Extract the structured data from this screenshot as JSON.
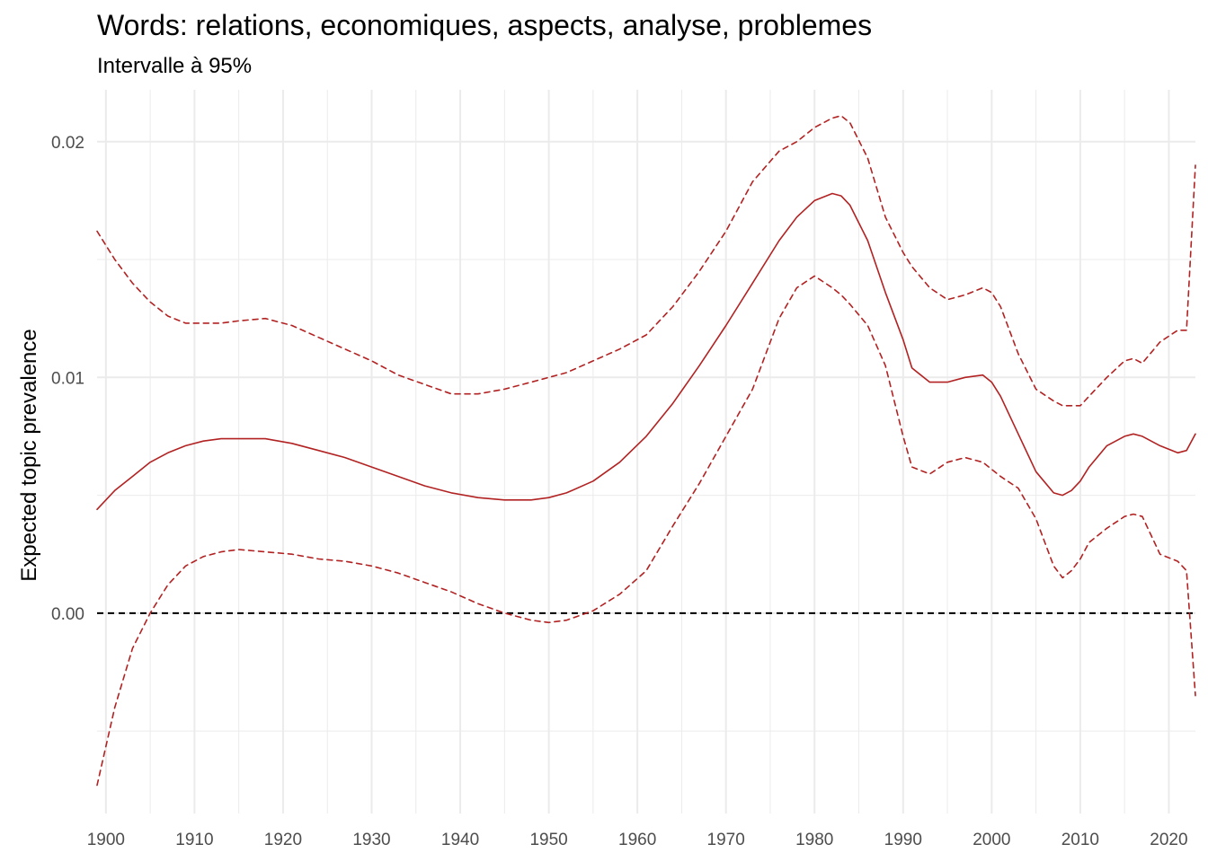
{
  "chart_data": {
    "type": "line",
    "title": "Words: relations, economiques, aspects, analyse, problemes",
    "subtitle": "Intervalle à 95%",
    "xlabel": "",
    "ylabel": "Expected topic prevalence",
    "xlim": [
      1899,
      2023
    ],
    "ylim": [
      -0.0085,
      0.0222
    ],
    "x_ticks": [
      1900,
      1910,
      1920,
      1930,
      1940,
      1950,
      1960,
      1970,
      1980,
      1990,
      2000,
      2010,
      2020
    ],
    "y_ticks": [
      0.0,
      0.01,
      0.02
    ],
    "y_tick_labels": [
      "0.00",
      "0.01",
      "0.02"
    ],
    "y_minor_ticks": [
      -0.005,
      0.005,
      0.015
    ],
    "grid": true,
    "reference_line": {
      "y": 0,
      "style": "dashed",
      "color": "#000000"
    },
    "colors": {
      "series": "#b22222",
      "grid": "#ebebeb",
      "axis_text": "#4d4d4d"
    },
    "series": [
      {
        "name": "estimate",
        "style": "solid",
        "x": [
          1899,
          1901,
          1903,
          1905,
          1907,
          1909,
          1911,
          1913,
          1915,
          1918,
          1921,
          1924,
          1927,
          1930,
          1933,
          1936,
          1939,
          1942,
          1945,
          1948,
          1950,
          1952,
          1955,
          1958,
          1961,
          1964,
          1967,
          1970,
          1973,
          1976,
          1978,
          1980,
          1982,
          1983,
          1984,
          1986,
          1988,
          1990,
          1991,
          1993,
          1995,
          1997,
          1999,
          2000,
          2001,
          2003,
          2005,
          2007,
          2008,
          2009,
          2010,
          2011,
          2013,
          2015,
          2016,
          2017,
          2019,
          2021,
          2022,
          2023
        ],
        "values": [
          0.0044,
          0.0052,
          0.0058,
          0.0064,
          0.0068,
          0.0071,
          0.0073,
          0.0074,
          0.0074,
          0.0074,
          0.0072,
          0.0069,
          0.0066,
          0.0062,
          0.0058,
          0.0054,
          0.0051,
          0.0049,
          0.0048,
          0.0048,
          0.0049,
          0.0051,
          0.0056,
          0.0064,
          0.0075,
          0.0089,
          0.0105,
          0.0122,
          0.014,
          0.0158,
          0.0168,
          0.0175,
          0.0178,
          0.0177,
          0.0173,
          0.0158,
          0.0136,
          0.0116,
          0.0104,
          0.0098,
          0.0098,
          0.01,
          0.0101,
          0.0098,
          0.0092,
          0.0076,
          0.006,
          0.0051,
          0.005,
          0.0052,
          0.0056,
          0.0062,
          0.0071,
          0.0075,
          0.0076,
          0.0075,
          0.0071,
          0.0068,
          0.0069,
          0.0076
        ]
      },
      {
        "name": "upper 95%",
        "style": "dashed",
        "x": [
          1899,
          1901,
          1903,
          1905,
          1907,
          1909,
          1911,
          1913,
          1915,
          1918,
          1921,
          1924,
          1927,
          1930,
          1933,
          1936,
          1939,
          1942,
          1945,
          1948,
          1950,
          1952,
          1955,
          1958,
          1961,
          1964,
          1967,
          1970,
          1973,
          1976,
          1978,
          1980,
          1982,
          1983,
          1984,
          1986,
          1988,
          1990,
          1991,
          1993,
          1995,
          1997,
          1999,
          2000,
          2001,
          2003,
          2005,
          2007,
          2008,
          2009,
          2010,
          2011,
          2013,
          2015,
          2016,
          2017,
          2019,
          2021,
          2022,
          2023
        ],
        "values": [
          0.0162,
          0.015,
          0.014,
          0.0132,
          0.0126,
          0.0123,
          0.0123,
          0.0123,
          0.0124,
          0.0125,
          0.0122,
          0.0117,
          0.0112,
          0.0107,
          0.0101,
          0.0097,
          0.0093,
          0.0093,
          0.0095,
          0.0098,
          0.01,
          0.0102,
          0.0107,
          0.0112,
          0.0118,
          0.013,
          0.0145,
          0.0162,
          0.0183,
          0.0196,
          0.02,
          0.0206,
          0.021,
          0.0211,
          0.0208,
          0.0193,
          0.0168,
          0.0153,
          0.0147,
          0.0138,
          0.0133,
          0.0135,
          0.0138,
          0.0136,
          0.013,
          0.011,
          0.0095,
          0.009,
          0.0088,
          0.0088,
          0.0088,
          0.0092,
          0.01,
          0.0107,
          0.0108,
          0.0106,
          0.0115,
          0.012,
          0.012,
          0.019
        ]
      },
      {
        "name": "lower 95%",
        "style": "dashed",
        "x": [
          1899,
          1901,
          1903,
          1905,
          1907,
          1909,
          1911,
          1913,
          1915,
          1918,
          1921,
          1924,
          1927,
          1930,
          1933,
          1936,
          1939,
          1942,
          1945,
          1948,
          1950,
          1952,
          1955,
          1958,
          1961,
          1964,
          1967,
          1970,
          1973,
          1976,
          1978,
          1980,
          1982,
          1983,
          1984,
          1986,
          1988,
          1990,
          1991,
          1993,
          1995,
          1997,
          1999,
          2000,
          2001,
          2003,
          2005,
          2007,
          2008,
          2009,
          2010,
          2011,
          2013,
          2015,
          2016,
          2017,
          2019,
          2021,
          2022,
          2023
        ],
        "values": [
          -0.0073,
          -0.004,
          -0.0015,
          0.0,
          0.0012,
          0.002,
          0.0024,
          0.0026,
          0.0027,
          0.0026,
          0.0025,
          0.0023,
          0.0022,
          0.002,
          0.0017,
          0.0013,
          0.0009,
          0.0004,
          0.0,
          -0.0003,
          -0.0004,
          -0.0003,
          0.0001,
          0.0008,
          0.0018,
          0.0037,
          0.0055,
          0.0075,
          0.0095,
          0.0125,
          0.0138,
          0.0143,
          0.0138,
          0.0135,
          0.0131,
          0.0122,
          0.0105,
          0.0075,
          0.0062,
          0.0059,
          0.0064,
          0.0066,
          0.0064,
          0.0061,
          0.0058,
          0.0053,
          0.004,
          0.002,
          0.0015,
          0.0018,
          0.0023,
          0.003,
          0.0036,
          0.0041,
          0.0042,
          0.0041,
          0.0025,
          0.0022,
          0.0018,
          -0.0035
        ]
      }
    ]
  }
}
